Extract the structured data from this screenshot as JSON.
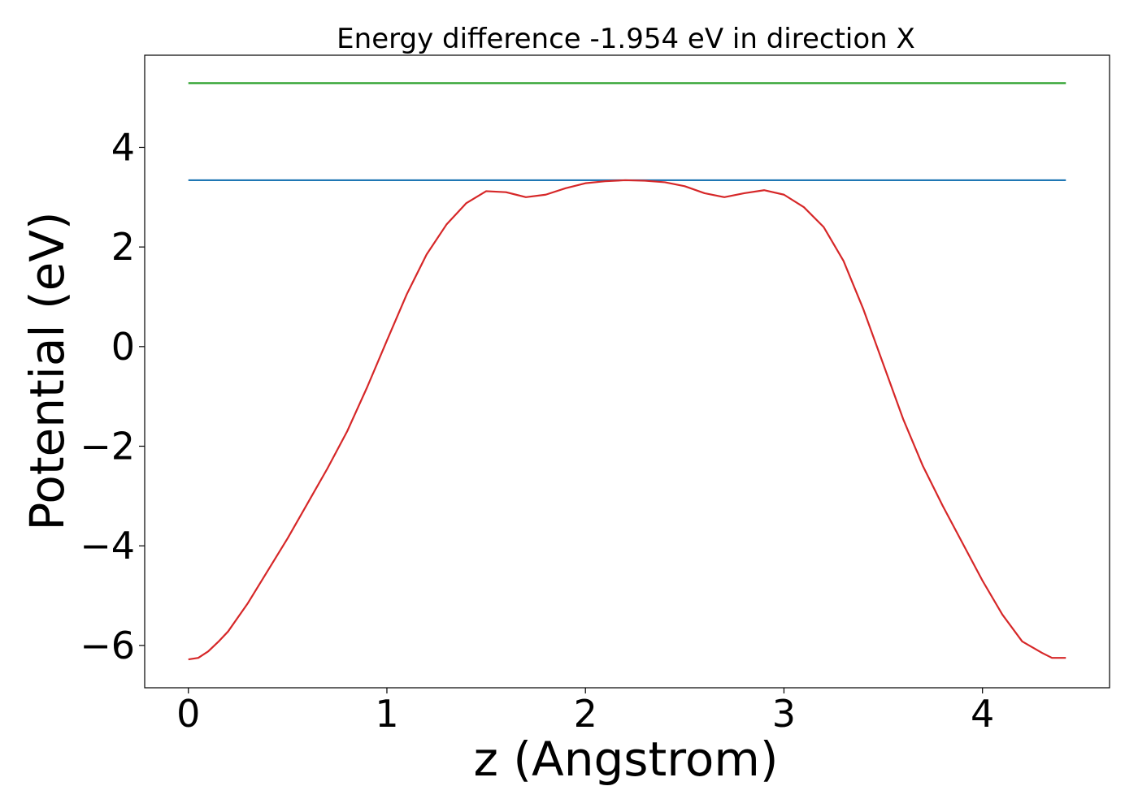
{
  "chart_data": {
    "type": "line",
    "title": "Energy difference -1.954 eV in direction X",
    "xlabel": "z (Angstrom)",
    "ylabel": "Potential (eV)",
    "xlim": [
      -0.22,
      4.64
    ],
    "ylim": [
      -6.85,
      5.85
    ],
    "xticks": [
      0,
      1,
      2,
      3,
      4
    ],
    "xtick_labels": [
      "0",
      "1",
      "2",
      "3",
      "4"
    ],
    "yticks": [
      -6,
      -4,
      -2,
      0,
      2,
      4
    ],
    "ytick_labels": [
      "−6",
      "−4",
      "−2",
      "0",
      "2",
      "4"
    ],
    "grid": false,
    "series": [
      {
        "color": "#2ca02c",
        "x": [
          0.0,
          4.42
        ],
        "y": [
          5.29,
          5.29
        ]
      },
      {
        "color": "#1f77b4",
        "x": [
          0.0,
          4.42
        ],
        "y": [
          3.34,
          3.34
        ]
      },
      {
        "color": "#d62728",
        "x": [
          0.0,
          0.05,
          0.1,
          0.15,
          0.2,
          0.3,
          0.4,
          0.5,
          0.6,
          0.7,
          0.8,
          0.9,
          1.0,
          1.1,
          1.2,
          1.3,
          1.4,
          1.5,
          1.6,
          1.7,
          1.8,
          1.9,
          2.0,
          2.1,
          2.2,
          2.3,
          2.4,
          2.5,
          2.6,
          2.7,
          2.8,
          2.9,
          3.0,
          3.1,
          3.2,
          3.3,
          3.4,
          3.5,
          3.6,
          3.7,
          3.8,
          3.9,
          4.0,
          4.1,
          4.2,
          4.3,
          4.35,
          4.42
        ],
        "y": [
          -6.28,
          -6.25,
          -6.12,
          -5.93,
          -5.72,
          -5.15,
          -4.5,
          -3.85,
          -3.15,
          -2.45,
          -1.7,
          -0.82,
          0.12,
          1.05,
          1.85,
          2.45,
          2.88,
          3.12,
          3.1,
          3.0,
          3.05,
          3.18,
          3.28,
          3.32,
          3.34,
          3.33,
          3.3,
          3.22,
          3.08,
          3.0,
          3.08,
          3.14,
          3.05,
          2.8,
          2.4,
          1.72,
          0.75,
          -0.35,
          -1.45,
          -2.4,
          -3.2,
          -3.95,
          -4.7,
          -5.38,
          -5.92,
          -6.15,
          -6.25,
          -6.25
        ]
      }
    ]
  }
}
